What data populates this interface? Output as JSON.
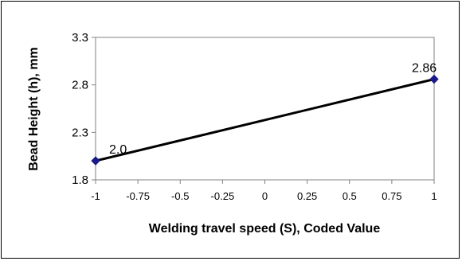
{
  "chart_data": {
    "type": "line",
    "title": "",
    "xlabel": "Welding travel speed (S), Coded Value",
    "ylabel": "Bead Height (h), mm",
    "xlim": [
      -1,
      1
    ],
    "ylim": [
      1.8,
      3.3
    ],
    "x_ticks": [
      "-1",
      "-0.75",
      "-0.5",
      "-0.25",
      "0",
      "0.25",
      "0.5",
      "0.75",
      "1"
    ],
    "y_ticks": [
      "1.8",
      "2.3",
      "2.8",
      "3.3"
    ],
    "grid": false,
    "legend": "none",
    "series": [
      {
        "x": [
          -1,
          1
        ],
        "y": [
          2.0,
          2.86
        ],
        "point_labels": [
          "2.0",
          "2.86"
        ],
        "line_color": "#000000",
        "marker_color": "#1a1a8c",
        "marker": "diamond"
      }
    ]
  }
}
